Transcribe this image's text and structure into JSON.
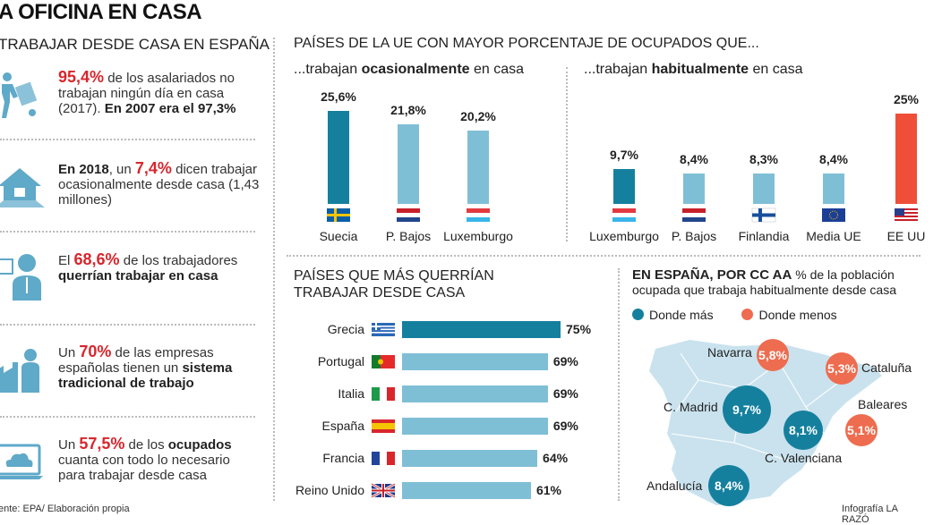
{
  "title": "A OFICINA EN CASA",
  "left": {
    "subtitle": "TRABAJAR DESDE CASA EN ESPAÑA",
    "facts": [
      {
        "icon": "worker-hand-truck-icon",
        "segments": [
          {
            "t": "95,4%",
            "s": "r"
          },
          {
            "t": " de los asalariados no trabajan ningún día en casa (2017). ",
            "s": ""
          },
          {
            "t": "En 2007 era el 97,3%",
            "s": "b"
          }
        ]
      },
      {
        "icon": "house-icon",
        "segments": [
          {
            "t": "En 2018",
            "s": "b"
          },
          {
            "t": ", un ",
            "s": ""
          },
          {
            "t": "7,4%",
            "s": "r"
          },
          {
            "t": " dicen trabajar ocasionalmente desde casa (1,43 millones)",
            "s": ""
          }
        ]
      },
      {
        "icon": "person-thinking-home-icon",
        "segments": [
          {
            "t": "El ",
            "s": ""
          },
          {
            "t": "68,6%",
            "s": "r"
          },
          {
            "t": " de los trabajadores ",
            "s": ""
          },
          {
            "t": "querrían trabajar en casa",
            "s": "b"
          }
        ]
      },
      {
        "icon": "factory-worker-icon",
        "segments": [
          {
            "t": "Un ",
            "s": ""
          },
          {
            "t": "70%",
            "s": "r"
          },
          {
            "t": " de las empresas españolas tienen un ",
            "s": ""
          },
          {
            "t": "sistema tradicional de trabajo",
            "s": "b"
          }
        ]
      },
      {
        "icon": "laptop-cloud-icon",
        "segments": [
          {
            "t": "Un ",
            "s": ""
          },
          {
            "t": "57,5%",
            "s": "r"
          },
          {
            "t": " de los ",
            "s": ""
          },
          {
            "t": "ocupados",
            "s": "b"
          },
          {
            "t": " cuanta con todo lo necesario para trabajar desde casa",
            "s": ""
          }
        ]
      }
    ],
    "source": "ente: EPA/ Elaboración propia"
  },
  "eu_heading": "PAÍSES DE LA UE CON MAYOR PORCENTAJE DE OCUPADOS QUE...",
  "colors": {
    "dark": "#15809e",
    "light": "#7fbfd6",
    "red": "#ef4f38",
    "orange": "#ee6c4f",
    "text_red": "#d8262c"
  },
  "chart_data": [
    {
      "type": "bar",
      "title_parts": [
        "...trabajan ",
        "ocasionalmente",
        " en casa"
      ],
      "categories": [
        "Suecia",
        "P. Bajos",
        "Luxemburgo"
      ],
      "values": [
        25.6,
        21.8,
        20.2
      ],
      "labels": [
        "25,6%",
        "21,8%",
        "20,2%"
      ],
      "flags": [
        "se",
        "nl",
        "lu"
      ],
      "highlight": [
        0
      ],
      "ylim": [
        0,
        26
      ]
    },
    {
      "type": "bar",
      "title_parts": [
        "...trabajan ",
        "habitualmente",
        " en casa"
      ],
      "categories": [
        "Luxemburgo",
        "P. Bajos",
        "Finlandia",
        "Media UE",
        "EE UU"
      ],
      "values": [
        9.7,
        8.4,
        8.3,
        8.4,
        25
      ],
      "labels": [
        "9,7%",
        "8,4%",
        "8,3%",
        "8,4%",
        "25%"
      ],
      "flags": [
        "lu",
        "nl",
        "fi",
        "eu",
        "us"
      ],
      "highlight": [
        0
      ],
      "accent": [
        4
      ],
      "ylim": [
        0,
        26
      ]
    },
    {
      "type": "bar",
      "orientation": "horizontal",
      "title": "PAÍSES QUE MÁS QUERRÍAN TRABAJAR DESDE CASA",
      "categories": [
        "Grecia",
        "Portugal",
        "Italia",
        "España",
        "Francia",
        "Reino Unido"
      ],
      "values": [
        75,
        69,
        69,
        69,
        64,
        61
      ],
      "labels": [
        "75%",
        "69%",
        "69%",
        "69%",
        "64%",
        "61%"
      ],
      "flags": [
        "gr",
        "pt",
        "it",
        "es",
        "fr",
        "uk"
      ],
      "highlight": [
        0
      ],
      "xlim": [
        0,
        75
      ]
    }
  ],
  "map": {
    "title_bold": "EN ESPAÑA, POR CC AA",
    "title_rest": " % de la población ocupada que trabaja habitualmente desde casa",
    "legend": [
      {
        "label": "Donde más",
        "color": "#15809e"
      },
      {
        "label": "Donde menos",
        "color": "#ee6c4f"
      }
    ],
    "regions": [
      {
        "name": "Navarra",
        "value": 5.8,
        "label": "5,8%",
        "group": "menos"
      },
      {
        "name": "Cataluña",
        "value": 5.3,
        "label": "5,3%",
        "group": "menos"
      },
      {
        "name": "C. Madrid",
        "value": 9.7,
        "label": "9,7%",
        "group": "más"
      },
      {
        "name": "C. Valenciana",
        "value": 8.1,
        "label": "8,1%",
        "group": "más"
      },
      {
        "name": "Baleares",
        "value": 5.1,
        "label": "5,1%",
        "group": "menos"
      },
      {
        "name": "Andalucía",
        "value": 8.4,
        "label": "8,4%",
        "group": "más"
      }
    ]
  },
  "credit": "Infografía LA RAZÓ"
}
